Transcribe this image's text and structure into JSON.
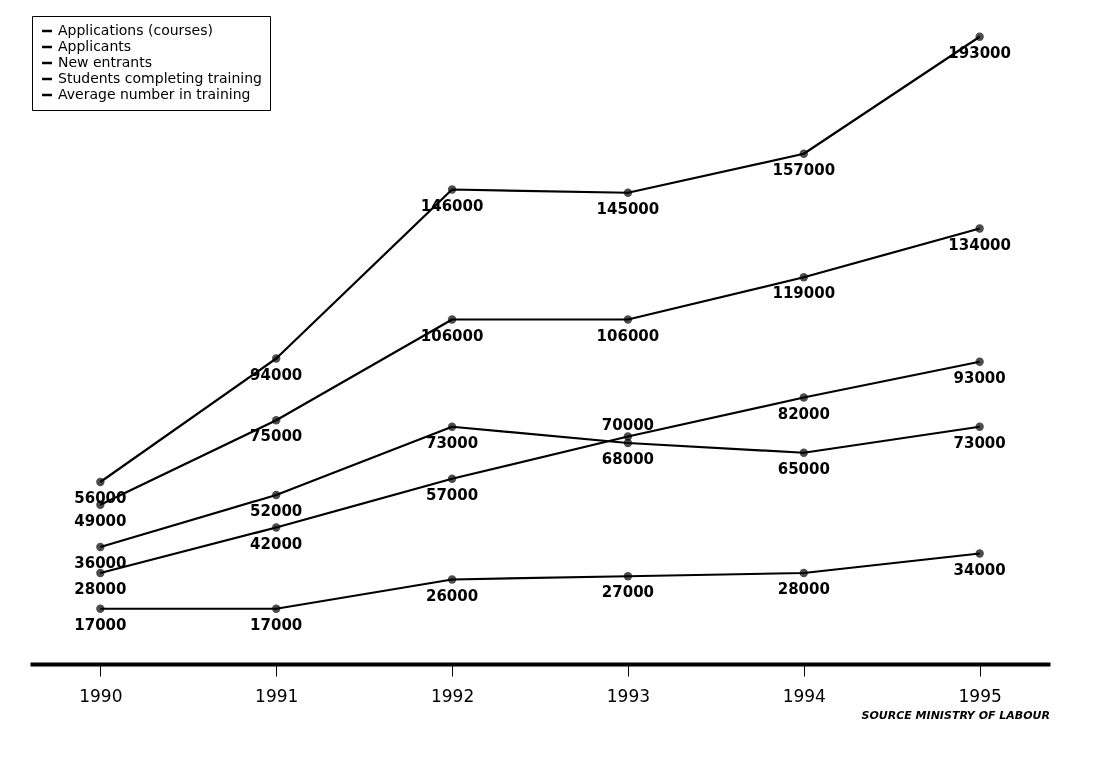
{
  "chart_data": {
    "type": "line",
    "categories": [
      "1990",
      "1991",
      "1992",
      "1993",
      "1994",
      "1995"
    ],
    "series": [
      {
        "name": "Applications (courses)",
        "color": "#000000",
        "values": [
          56000,
          94000,
          146000,
          145000,
          157000,
          193000
        ]
      },
      {
        "name": "Applicants",
        "color": "#000000",
        "values": [
          49000,
          75000,
          106000,
          106000,
          119000,
          134000
        ]
      },
      {
        "name": "New entrants",
        "color": "#000000",
        "values": [
          36000,
          52000,
          73000,
          68000,
          65000,
          73000
        ]
      },
      {
        "name": "Students completing training",
        "color": "#000000",
        "values": [
          17000,
          17000,
          26000,
          27000,
          28000,
          34000
        ]
      },
      {
        "name": "Average number in training",
        "color": "#000000",
        "values": [
          28000,
          42000,
          57000,
          70000,
          82000,
          93000
        ]
      }
    ],
    "data_labels": true,
    "marker": "circle",
    "legend": "top left",
    "grid": false,
    "tick_labels": "x",
    "annotations": [
      "SOURCE MINISTRY OF LABOUR"
    ]
  }
}
